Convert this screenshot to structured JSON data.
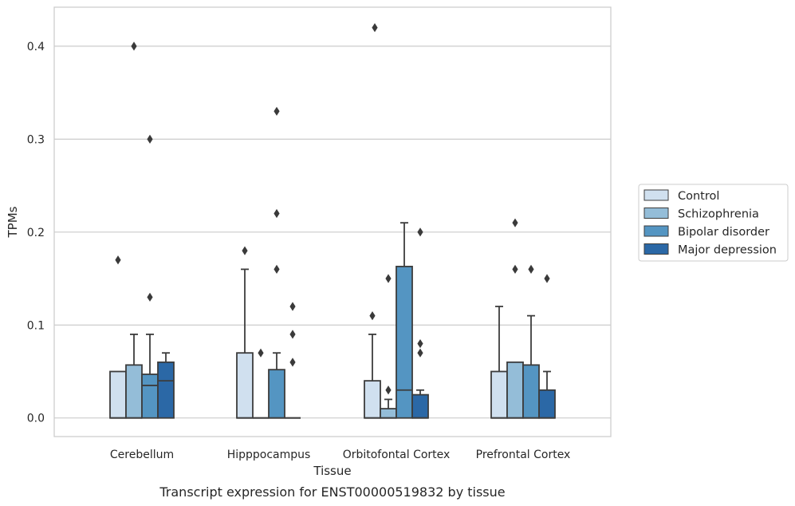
{
  "chart_data": {
    "type": "box",
    "xlabel": "Tissue",
    "ylabel": "TPMs",
    "caption": "Transcript expression for ENST00000519832 by tissue",
    "ylim": [
      -0.02,
      0.442
    ],
    "yticks": [
      0.0,
      0.1,
      0.2,
      0.3,
      0.4
    ],
    "ytick_labels": [
      "0.0",
      "0.1",
      "0.2",
      "0.3",
      "0.4"
    ],
    "grid": "horizontal",
    "legend_position": "right",
    "categories": [
      "Cerebellum",
      "Hipppocampus",
      "Orbitofontal Cortex",
      "Prefrontal Cortex"
    ],
    "series": [
      {
        "name": "Control",
        "color": "#d0e0ef",
        "boxes": [
          {
            "q1": 0.0,
            "median": 0.0,
            "q3": 0.05,
            "whisker_low": 0.0,
            "whisker_high": 0.05,
            "outliers": [
              0.17
            ]
          },
          {
            "q1": 0.0,
            "median": 0.0,
            "q3": 0.07,
            "whisker_low": 0.0,
            "whisker_high": 0.16,
            "outliers": [
              0.18
            ]
          },
          {
            "q1": 0.0,
            "median": 0.0,
            "q3": 0.04,
            "whisker_low": 0.0,
            "whisker_high": 0.09,
            "outliers": [
              0.11
            ]
          },
          {
            "q1": 0.0,
            "median": 0.0,
            "q3": 0.05,
            "whisker_low": 0.0,
            "whisker_high": 0.12,
            "outliers": []
          }
        ]
      },
      {
        "name": "Schizophrenia",
        "color": "#94bdd8",
        "boxes": [
          {
            "q1": 0.0,
            "median": 0.0,
            "q3": 0.057,
            "whisker_low": 0.0,
            "whisker_high": 0.09,
            "outliers": [
              0.4
            ]
          },
          {
            "q1": 0.0,
            "median": 0.0,
            "q3": 0.0,
            "whisker_low": 0.0,
            "whisker_high": 0.0,
            "outliers": [
              0.07
            ]
          },
          {
            "q1": 0.0,
            "median": 0.0,
            "q3": 0.01,
            "whisker_low": 0.0,
            "whisker_high": 0.02,
            "outliers": [
              0.03,
              0.15
            ]
          },
          {
            "q1": 0.0,
            "median": 0.0,
            "q3": 0.06,
            "whisker_low": 0.0,
            "whisker_high": 0.06,
            "outliers": [
              0.21,
              0.16
            ]
          }
        ]
      },
      {
        "name": "Bipolar disorder",
        "color": "#5495c2",
        "boxes": [
          {
            "q1": 0.0,
            "median": 0.035,
            "q3": 0.047,
            "whisker_low": 0.0,
            "whisker_high": 0.09,
            "outliers": [
              0.3,
              0.13
            ]
          },
          {
            "q1": 0.0,
            "median": 0.0,
            "q3": 0.052,
            "whisker_low": 0.0,
            "whisker_high": 0.07,
            "outliers": [
              0.33,
              0.22,
              0.16
            ]
          },
          {
            "q1": 0.0,
            "median": 0.03,
            "q3": 0.163,
            "whisker_low": 0.0,
            "whisker_high": 0.21,
            "outliers": []
          },
          {
            "q1": 0.0,
            "median": 0.0,
            "q3": 0.057,
            "whisker_low": 0.0,
            "whisker_high": 0.11,
            "outliers": [
              0.16
            ]
          }
        ]
      },
      {
        "name": "Major depression",
        "color": "#2b68a6",
        "boxes": [
          {
            "q1": 0.0,
            "median": 0.04,
            "q3": 0.06,
            "whisker_low": 0.0,
            "whisker_high": 0.07,
            "outliers": []
          },
          {
            "q1": 0.0,
            "median": 0.0,
            "q3": 0.0,
            "whisker_low": 0.0,
            "whisker_high": 0.0,
            "outliers": [
              0.12,
              0.09,
              0.06
            ]
          },
          {
            "q1": 0.0,
            "median": 0.0,
            "q3": 0.025,
            "whisker_low": 0.0,
            "whisker_high": 0.03,
            "outliers": [
              0.2,
              0.08,
              0.07
            ]
          },
          {
            "q1": 0.0,
            "median": 0.0,
            "q3": 0.03,
            "whisker_low": 0.0,
            "whisker_high": 0.05,
            "outliers": [
              0.15
            ]
          }
        ]
      }
    ],
    "extra_outliers": [
      {
        "category": 2,
        "slot": 0.15,
        "value": 0.42
      }
    ]
  }
}
